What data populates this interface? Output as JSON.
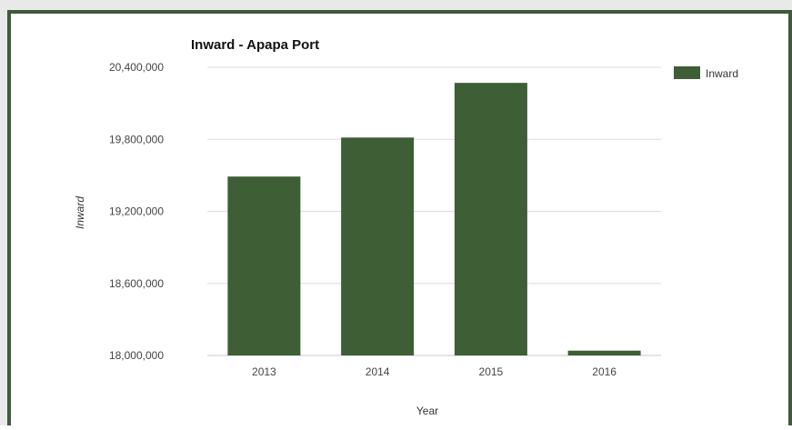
{
  "chart_data": {
    "type": "bar",
    "title": "Inward - Apapa Port",
    "xlabel": "Year",
    "ylabel": "Inward",
    "categories": [
      "2013",
      "2014",
      "2015",
      "2016"
    ],
    "series": [
      {
        "name": "Inward",
        "values": [
          19490000,
          19815000,
          20270000,
          18040000
        ]
      }
    ],
    "ylim": [
      18000000,
      20400000
    ],
    "yticks": [
      18000000,
      18600000,
      19200000,
      19800000,
      20400000
    ],
    "ytick_labels": [
      "18,000,000",
      "18,600,000",
      "19,200,000",
      "19,800,000",
      "20,400,000"
    ],
    "grid": true,
    "legend_position": "right",
    "colors": {
      "bar": "#3e5e36",
      "grid": "#dddddd",
      "baseline": "#c8c8c8"
    }
  }
}
